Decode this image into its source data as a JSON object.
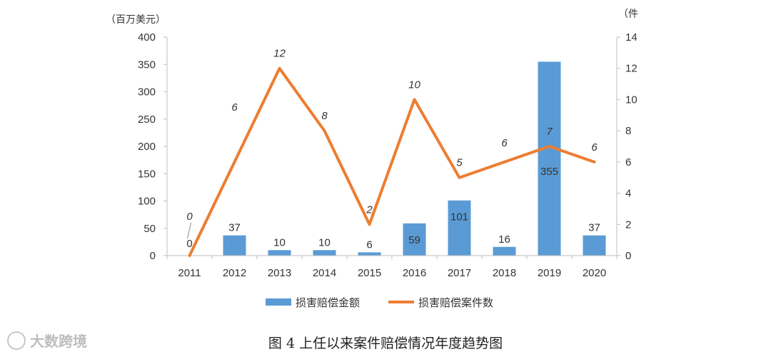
{
  "chart_data": {
    "type": "bar+line",
    "categories": [
      "2011",
      "2012",
      "2013",
      "2014",
      "2015",
      "2016",
      "2017",
      "2018",
      "2019",
      "2020"
    ],
    "series": [
      {
        "name": "损害赔偿金额",
        "type": "bar",
        "axis": "left",
        "values": [
          0,
          37,
          10,
          10,
          6,
          59,
          101,
          16,
          355,
          37
        ],
        "color": "#5b9bd5"
      },
      {
        "name": "损害赔偿案件数",
        "type": "line",
        "axis": "right",
        "values": [
          0,
          6,
          12,
          8,
          2,
          10,
          5,
          6,
          7,
          6
        ],
        "color": "#ed7d31"
      }
    ],
    "y_left": {
      "unit": "（百万美元）",
      "min": 0,
      "max": 400,
      "ticks": [
        0,
        50,
        100,
        150,
        200,
        250,
        300,
        350,
        400
      ]
    },
    "y_right": {
      "unit": "（件",
      "min": 0,
      "max": 14,
      "ticks": [
        0,
        2,
        4,
        6,
        8,
        10,
        12,
        14
      ]
    },
    "legend": {
      "position": "bottom"
    },
    "grid": false
  },
  "caption": "图 4  上任以来案件赔偿情况年度趋势图",
  "watermark": "大数跨境"
}
